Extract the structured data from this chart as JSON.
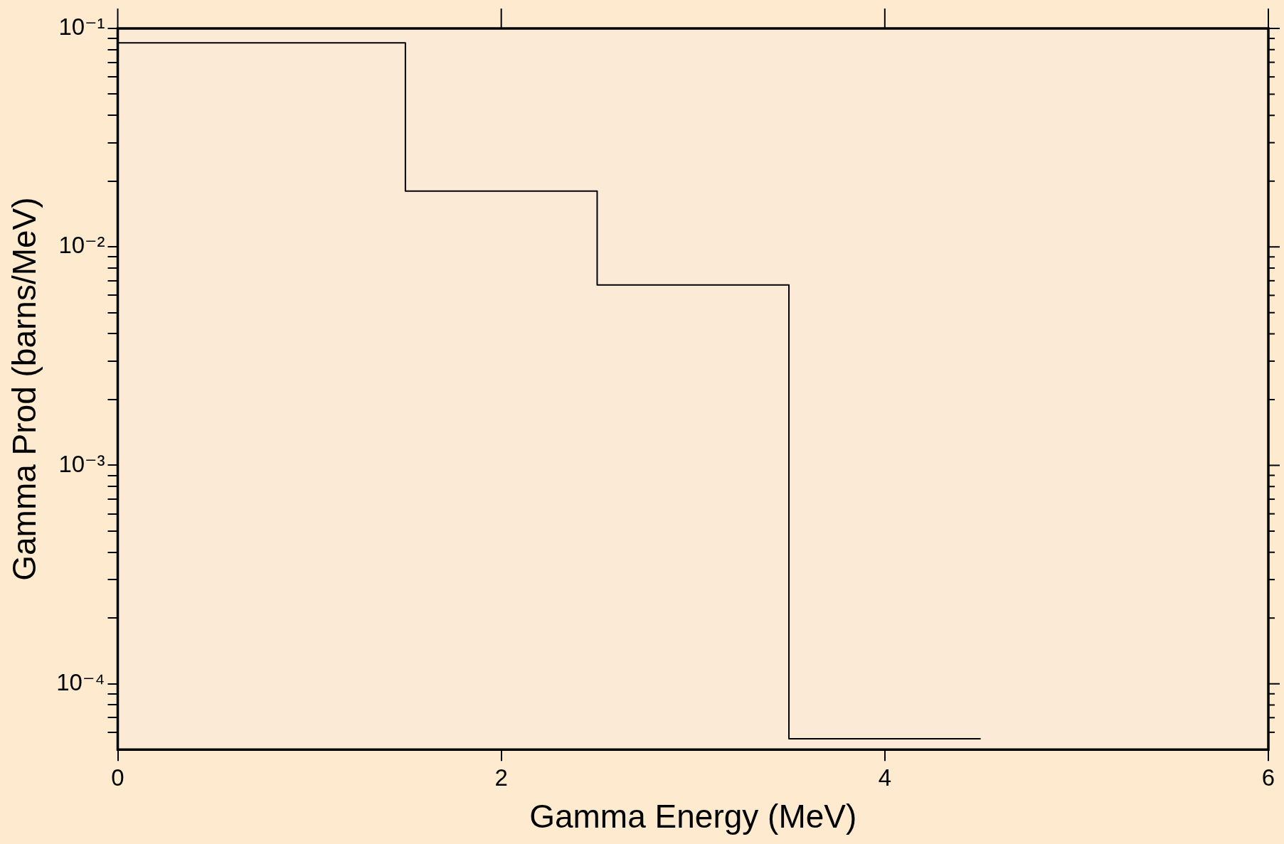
{
  "chart_data": {
    "type": "step",
    "xlabel": "Gamma Energy (MeV)",
    "ylabel": "Gamma Prod (barns/MeV)",
    "x": [
      0,
      1.5,
      2.5,
      3.5,
      4.5
    ],
    "series": [
      {
        "color": "#000000",
        "values": [
          0.086,
          0.018,
          0.0067,
          5.6e-05,
          5.6e-05
        ]
      }
    ],
    "xlim": [
      0,
      6
    ],
    "xticks": [
      0,
      2,
      4,
      6
    ],
    "ylim": [
      5e-05,
      0.1
    ],
    "yticks": [
      {
        "value": 6e-05,
        "label": null
      },
      {
        "value": 7e-05,
        "label": null
      },
      {
        "value": 8e-05,
        "label": null
      },
      {
        "value": 9e-05,
        "label": null
      },
      {
        "value": 0.0001,
        "label": "10⁻⁴"
      },
      {
        "value": 0.0002,
        "label": null
      },
      {
        "value": 0.0003,
        "label": null
      },
      {
        "value": 0.0004,
        "label": null
      },
      {
        "value": 0.0005,
        "label": null
      },
      {
        "value": 0.0006,
        "label": null
      },
      {
        "value": 0.0007,
        "label": null
      },
      {
        "value": 0.0008,
        "label": null
      },
      {
        "value": 0.0009,
        "label": null
      },
      {
        "value": 0.001,
        "label": "10⁻³"
      },
      {
        "value": 0.002,
        "label": null
      },
      {
        "value": 0.003,
        "label": null
      },
      {
        "value": 0.004,
        "label": null
      },
      {
        "value": 0.005,
        "label": null
      },
      {
        "value": 0.006,
        "label": null
      },
      {
        "value": 0.007,
        "label": null
      },
      {
        "value": 0.008,
        "label": null
      },
      {
        "value": 0.009,
        "label": null
      },
      {
        "value": 0.01,
        "label": "10⁻²"
      },
      {
        "value": 0.02,
        "label": null
      },
      {
        "value": 0.03,
        "label": null
      },
      {
        "value": 0.04,
        "label": null
      },
      {
        "value": 0.05,
        "label": null
      },
      {
        "value": 0.06,
        "label": null
      },
      {
        "value": 0.07,
        "label": null
      },
      {
        "value": 0.08,
        "label": null
      },
      {
        "value": 0.09,
        "label": null
      },
      {
        "value": 0.1,
        "label": "10⁻¹"
      }
    ],
    "log": "y",
    "grid": false,
    "legend": false,
    "marker": "none",
    "line_style": "solid"
  }
}
